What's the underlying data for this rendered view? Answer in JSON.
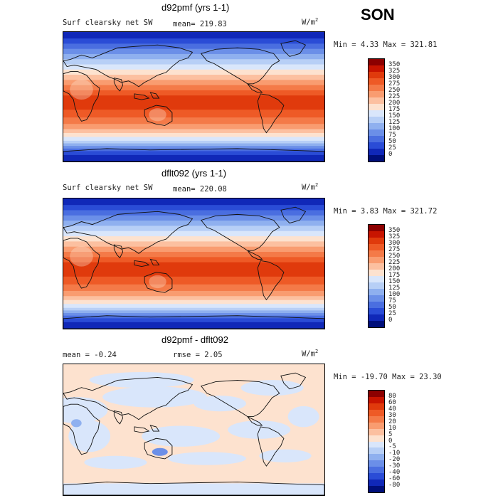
{
  "season": "SON",
  "panels": [
    {
      "title": "d92pmf (yrs 1-1)",
      "left_label": "Surf clearsky net SW",
      "stat": "mean= 219.83",
      "units": "W/m",
      "units_sup": "2",
      "minmax": "Min =   4.33 Max = 321.81",
      "colorbar_labels": [
        "350",
        "325",
        "300",
        "275",
        "250",
        "225",
        "200",
        "175",
        "150",
        "125",
        "100",
        "75",
        "50",
        "25",
        "0"
      ],
      "colorbar_colors": [
        "#8c0000",
        "#c81400",
        "#e03a0c",
        "#ee5a26",
        "#f47a48",
        "#f99c70",
        "#fcc0a0",
        "#fde2cf",
        "#d9e6fb",
        "#b7cff6",
        "#8fb0ef",
        "#6b8fe8",
        "#4a6ee0",
        "#2a4cd6",
        "#1028b8",
        "#000f7a"
      ],
      "map_type": "absolute"
    },
    {
      "title": "dflt092 (yrs 1-1)",
      "left_label": "Surf clearsky net SW",
      "stat": "mean= 220.08",
      "units": "W/m",
      "units_sup": "2",
      "minmax": "Min =   3.83 Max = 321.72",
      "colorbar_labels": [
        "350",
        "325",
        "300",
        "275",
        "250",
        "225",
        "200",
        "175",
        "150",
        "125",
        "100",
        "75",
        "50",
        "25",
        "0"
      ],
      "colorbar_colors": [
        "#8c0000",
        "#c81400",
        "#e03a0c",
        "#ee5a26",
        "#f47a48",
        "#f99c70",
        "#fcc0a0",
        "#fde2cf",
        "#d9e6fb",
        "#b7cff6",
        "#8fb0ef",
        "#6b8fe8",
        "#4a6ee0",
        "#2a4cd6",
        "#1028b8",
        "#000f7a"
      ],
      "map_type": "absolute"
    },
    {
      "title": "d92pmf - dflt092",
      "left_label": "mean =   -0.24",
      "stat": "rmse =    2.05",
      "units": "W/m",
      "units_sup": "2",
      "minmax": "Min = -19.70 Max =  23.30",
      "colorbar_labels": [
        "80",
        "60",
        "40",
        "30",
        "20",
        "10",
        "5",
        "0",
        "-5",
        "-10",
        "-20",
        "-30",
        "-40",
        "-60",
        "-80"
      ],
      "colorbar_colors": [
        "#8c0000",
        "#c81400",
        "#e03a0c",
        "#ee5a26",
        "#f47a48",
        "#f99c70",
        "#fcc0a0",
        "#fde2cf",
        "#d9e6fb",
        "#b7cff6",
        "#8fb0ef",
        "#6b8fe8",
        "#4a6ee0",
        "#2a4cd6",
        "#1028b8",
        "#000f7a"
      ],
      "map_type": "difference"
    }
  ]
}
